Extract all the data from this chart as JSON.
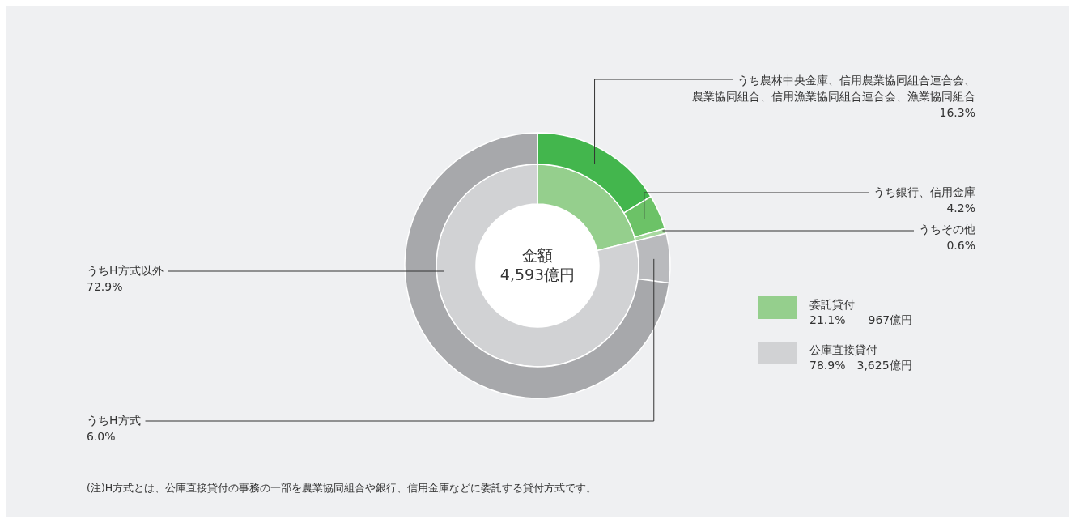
{
  "chart_data": [
    {
      "type": "donut",
      "legend": "right",
      "categories": [
        "委託貸付",
        "公庫直接貸付"
      ],
      "values": [
        21.1,
        78.9
      ],
      "colors": [
        "#95cf8d",
        "#d1d2d4"
      ],
      "annotations": [
        "金額\n4,593億円",
        "21.1%　　967億円",
        "78.9%　3,625億円",
        "(注)H方式とは、公庫直接貸付の事務の一部を農業協同組合や銀行、信用金庫などに委託する貸付方式です。"
      ]
    },
    {
      "type": "donut",
      "categories": [
        "うち農林中央金庫、信用農業協同組合連合会、農業協同組合、信用漁業協同組合連合会、漁業協同組合\n16.3%",
        "うち銀行、信用金庫\n4.2%",
        "うちその他\n0.6%",
        "うちH方式\n6.0%",
        "うちH方式以外\n72.9%"
      ],
      "values": [
        16.3,
        4.2,
        0.6,
        6.0,
        72.9
      ],
      "colors": [
        "#43b64d",
        "#6cc267",
        "#a8d9a0",
        "#b9babd",
        "#a7a8ab"
      ]
    }
  ]
}
